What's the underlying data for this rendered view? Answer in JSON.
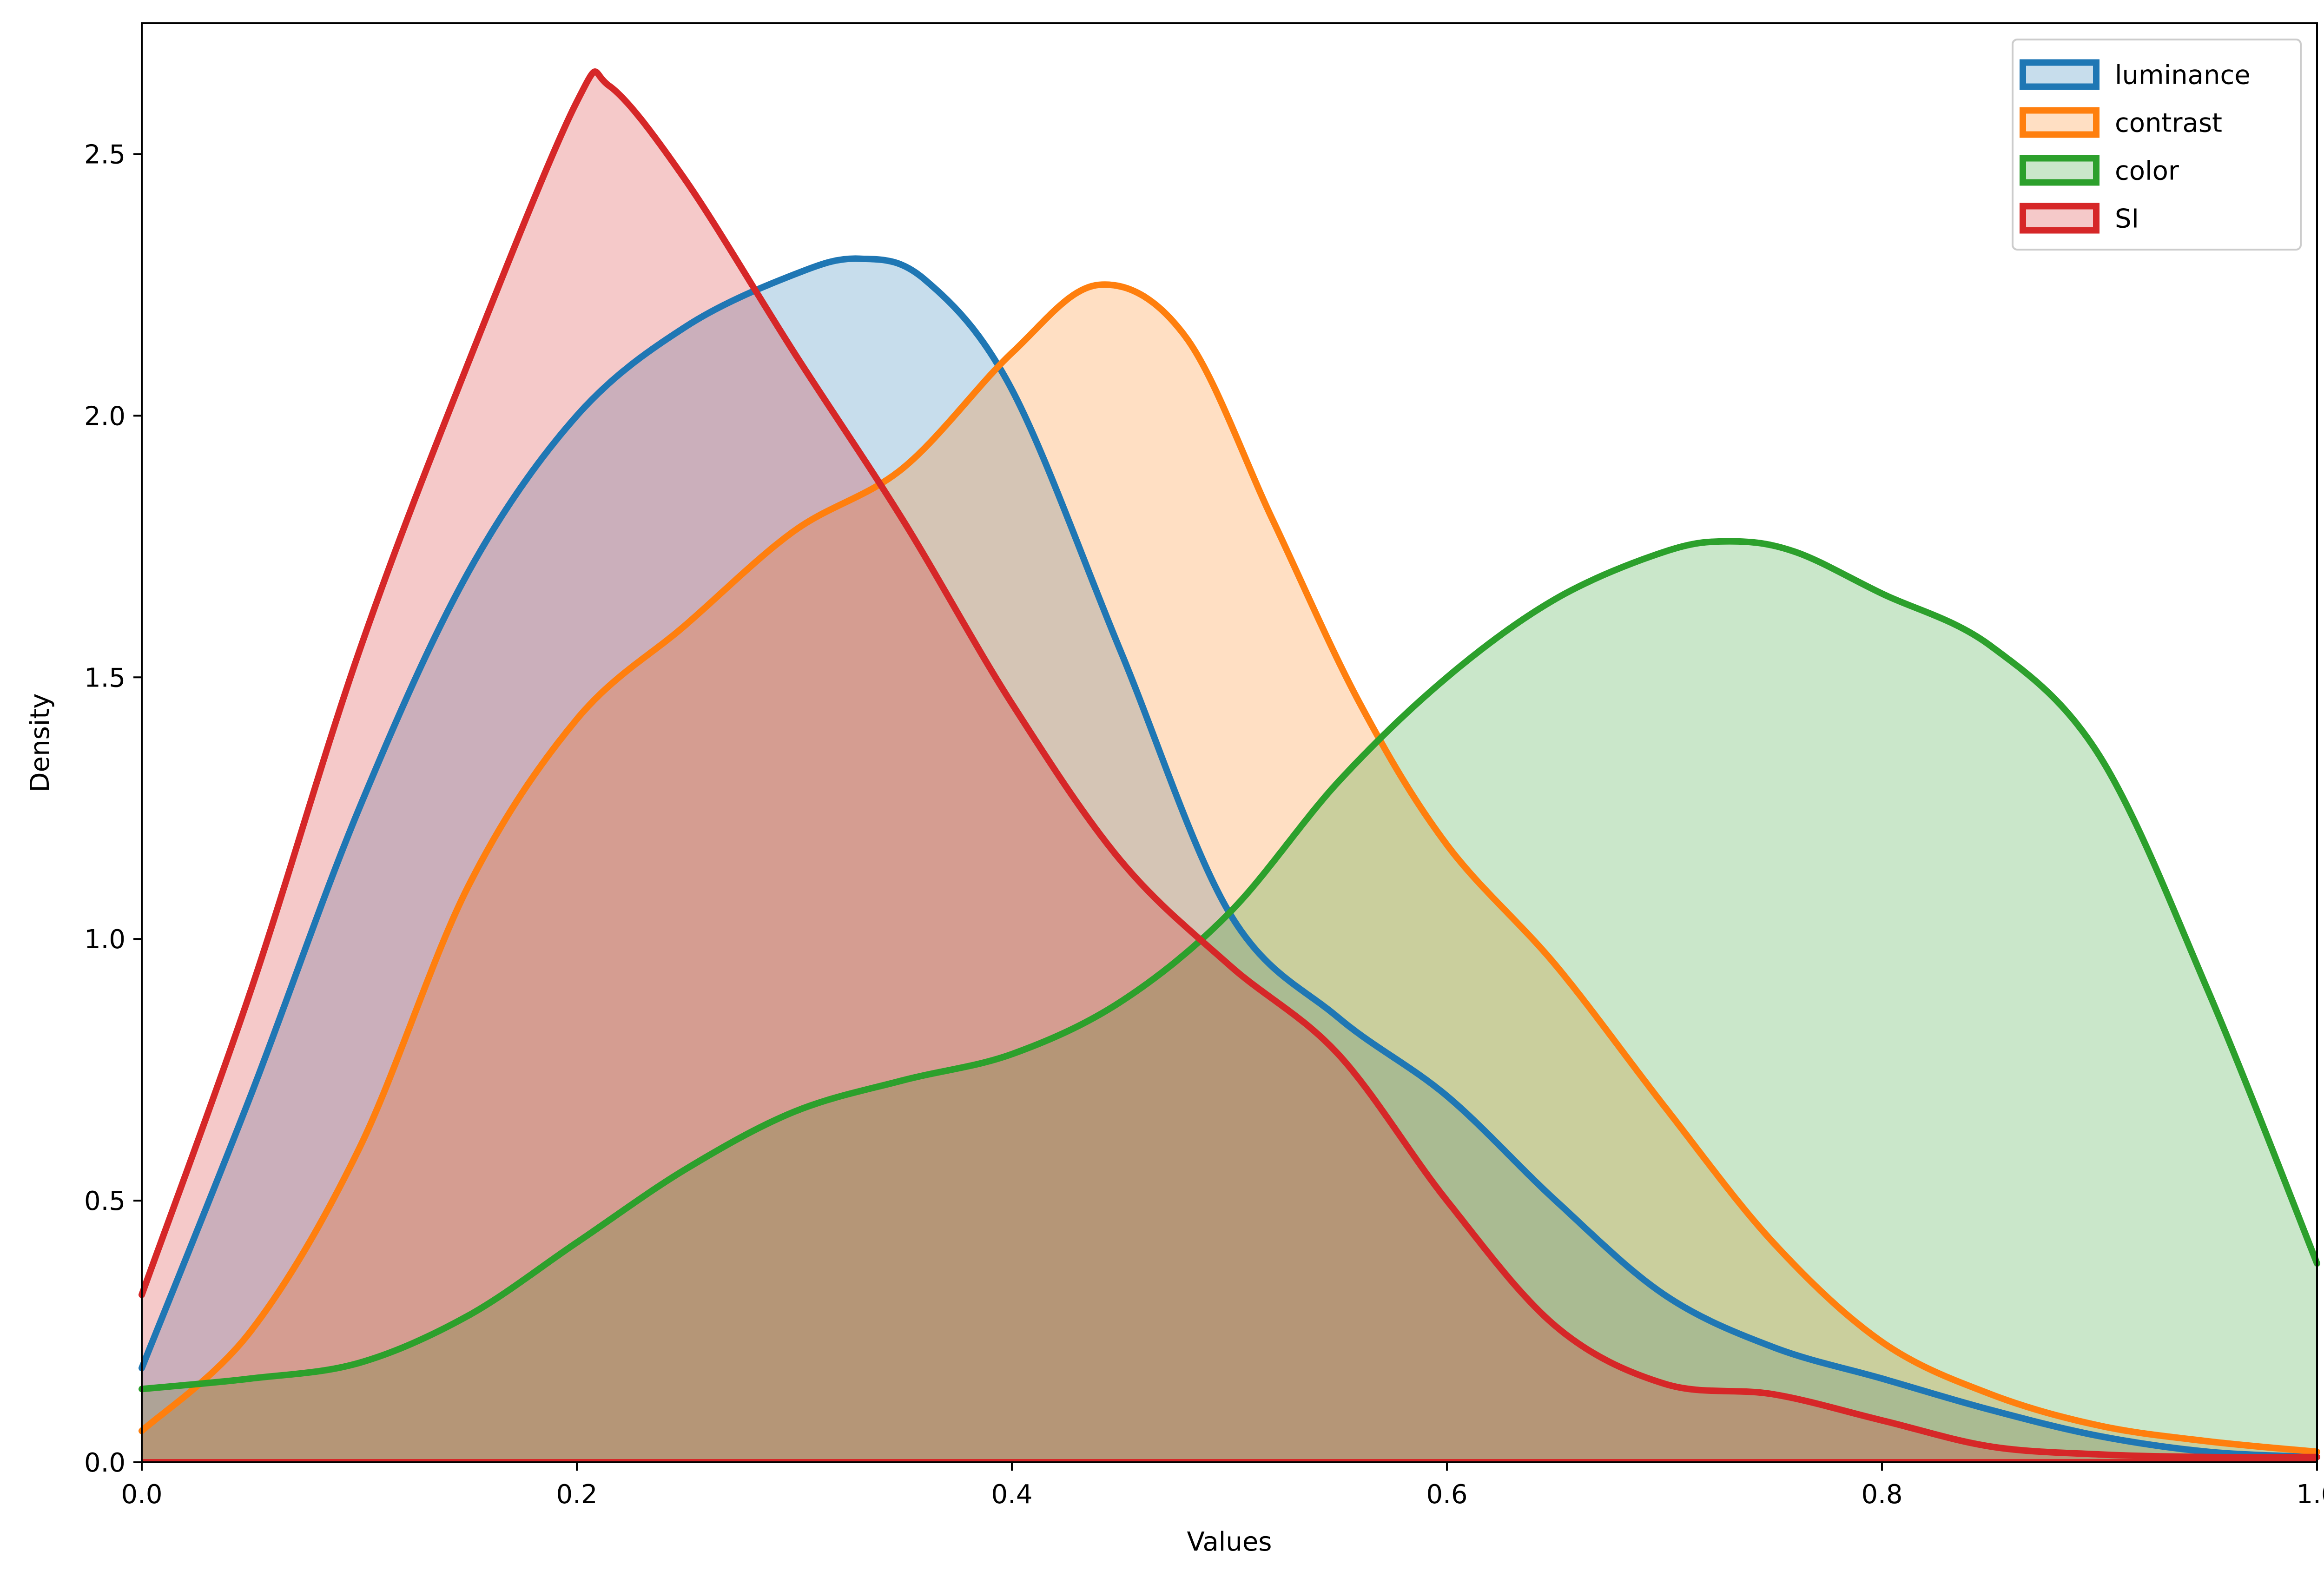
{
  "chart_data": {
    "type": "area",
    "xlabel": "Values",
    "ylabel": "Density",
    "xlim": [
      0,
      1
    ],
    "ylim": [
      0,
      2.75
    ],
    "x_ticks": [
      0.0,
      0.2,
      0.4,
      0.6,
      0.8,
      1.0
    ],
    "x_tick_labels": [
      "0.0",
      "0.2",
      "0.4",
      "0.6",
      "0.8",
      "1.0"
    ],
    "y_ticks": [
      0.0,
      0.5,
      1.0,
      1.5,
      2.0,
      2.5
    ],
    "y_tick_labels": [
      "0.0",
      "0.5",
      "1.0",
      "1.5",
      "2.0",
      "2.5"
    ],
    "grid": false,
    "legend_position": "top-right",
    "fill_alpha": 0.25,
    "series": [
      {
        "name": "luminance",
        "color": "#1f77b4",
        "x": [
          0.0,
          0.05,
          0.1,
          0.15,
          0.2,
          0.25,
          0.3,
          0.33,
          0.36,
          0.4,
          0.45,
          0.5,
          0.55,
          0.6,
          0.65,
          0.7,
          0.75,
          0.8,
          0.85,
          0.9,
          0.95,
          1.0
        ],
        "y": [
          0.18,
          0.7,
          1.25,
          1.7,
          2.0,
          2.17,
          2.27,
          2.3,
          2.26,
          2.05,
          1.55,
          1.05,
          0.85,
          0.7,
          0.5,
          0.32,
          0.22,
          0.16,
          0.1,
          0.05,
          0.02,
          0.01
        ]
      },
      {
        "name": "contrast",
        "color": "#ff7f0e",
        "x": [
          0.0,
          0.05,
          0.1,
          0.15,
          0.2,
          0.25,
          0.3,
          0.35,
          0.4,
          0.44,
          0.48,
          0.52,
          0.56,
          0.6,
          0.65,
          0.7,
          0.75,
          0.8,
          0.85,
          0.9,
          0.95,
          1.0
        ],
        "y": [
          0.06,
          0.25,
          0.6,
          1.1,
          1.42,
          1.6,
          1.78,
          1.9,
          2.12,
          2.25,
          2.15,
          1.8,
          1.45,
          1.18,
          0.95,
          0.68,
          0.42,
          0.23,
          0.13,
          0.07,
          0.04,
          0.02
        ]
      },
      {
        "name": "color",
        "color": "#2ca02c",
        "x": [
          0.0,
          0.05,
          0.1,
          0.15,
          0.2,
          0.25,
          0.3,
          0.35,
          0.4,
          0.45,
          0.5,
          0.55,
          0.6,
          0.65,
          0.7,
          0.73,
          0.76,
          0.8,
          0.85,
          0.9,
          0.95,
          1.0
        ],
        "y": [
          0.14,
          0.16,
          0.19,
          0.28,
          0.42,
          0.56,
          0.67,
          0.73,
          0.78,
          0.88,
          1.05,
          1.3,
          1.5,
          1.65,
          1.74,
          1.76,
          1.74,
          1.66,
          1.56,
          1.35,
          0.9,
          0.38
        ]
      },
      {
        "name": "SI",
        "color": "#d62728",
        "x": [
          0.0,
          0.05,
          0.1,
          0.15,
          0.2,
          0.215,
          0.25,
          0.3,
          0.35,
          0.4,
          0.45,
          0.5,
          0.55,
          0.6,
          0.65,
          0.7,
          0.75,
          0.8,
          0.85,
          0.9,
          0.95,
          1.0
        ],
        "y": [
          0.32,
          0.9,
          1.55,
          2.1,
          2.6,
          2.63,
          2.45,
          2.12,
          1.8,
          1.45,
          1.15,
          0.95,
          0.78,
          0.5,
          0.26,
          0.15,
          0.13,
          0.08,
          0.03,
          0.015,
          0.01,
          0.01
        ]
      }
    ]
  }
}
